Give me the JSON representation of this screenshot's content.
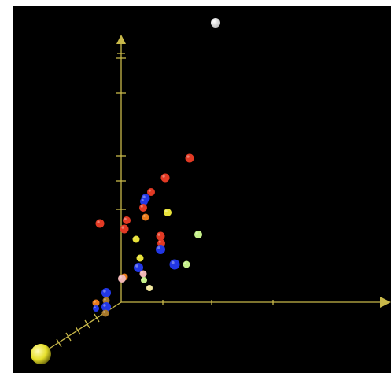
{
  "viewer": {
    "background": "#000000",
    "axis_color": "#c8b84a",
    "origin_marker_color": "#e6df2a",
    "light_marker_color": "#ffffff",
    "status_text": ""
  },
  "palette": {
    "red": "#e23a24",
    "orange": "#e87b1d",
    "blue": "#2237e6",
    "yellow": "#e8e23a",
    "light_yellow": "#f3e9a0",
    "light_green": "#c6f08a",
    "pink": "#f0b6b6",
    "brown": "#a7782a",
    "white": "#ffffff"
  },
  "points": [
    {
      "color": "red",
      "kind": "sphere"
    },
    {
      "color": "red",
      "kind": "sphere"
    },
    {
      "color": "red",
      "kind": "sphere"
    },
    {
      "color": "blue",
      "kind": "sphere"
    },
    {
      "color": "blue",
      "kind": "sphere"
    },
    {
      "color": "red",
      "kind": "sphere"
    },
    {
      "color": "yellow",
      "kind": "sphere"
    },
    {
      "color": "red",
      "kind": "sphere"
    },
    {
      "color": "orange",
      "kind": "sphere"
    },
    {
      "color": "red",
      "kind": "sphere"
    },
    {
      "color": "red",
      "kind": "sphere"
    },
    {
      "color": "red",
      "kind": "sphere"
    },
    {
      "color": "light_green",
      "kind": "sphere"
    },
    {
      "color": "yellow",
      "kind": "sphere"
    },
    {
      "color": "red",
      "kind": "sphere"
    },
    {
      "color": "blue",
      "kind": "sphere"
    },
    {
      "color": "yellow",
      "kind": "sphere"
    },
    {
      "color": "blue",
      "kind": "sphere"
    },
    {
      "color": "light_green",
      "kind": "sphere"
    },
    {
      "color": "blue",
      "kind": "sphere"
    },
    {
      "color": "pink",
      "kind": "sphere"
    },
    {
      "color": "light_green",
      "kind": "sphere"
    },
    {
      "color": "orange",
      "kind": "sphere"
    },
    {
      "color": "pink",
      "kind": "sphere"
    },
    {
      "color": "blue",
      "kind": "sphere"
    },
    {
      "color": "brown",
      "kind": "sphere"
    },
    {
      "color": "orange",
      "kind": "sphere"
    },
    {
      "color": "blue",
      "kind": "sphere"
    },
    {
      "color": "brown",
      "kind": "sphere"
    },
    {
      "color": "blue",
      "kind": "sphere"
    },
    {
      "color": "light_yellow",
      "kind": "sphere"
    }
  ]
}
